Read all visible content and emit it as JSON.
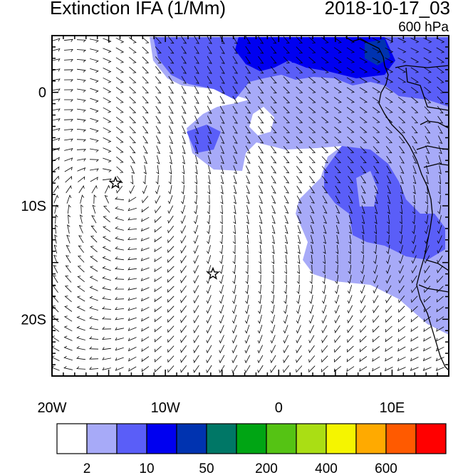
{
  "title_left": "Extinction IFA (1/Mm)",
  "title_right": "2018-10-17_03",
  "subtitle": "600 hPa",
  "map": {
    "lon_range": [
      -20,
      15
    ],
    "lat_range": [
      -25,
      5
    ],
    "lon_ticks": [
      {
        "lon": -20,
        "label": "20W"
      },
      {
        "lon": -10,
        "label": "10W"
      },
      {
        "lon": 0,
        "label": "0"
      },
      {
        "lon": 10,
        "label": "10E"
      }
    ],
    "lat_ticks": [
      {
        "lat": 0,
        "label": "0"
      },
      {
        "lat": -10,
        "label": "10S"
      },
      {
        "lat": -20,
        "label": "20S"
      }
    ],
    "markers": [
      {
        "name": "star-marker",
        "lon": -14.4,
        "lat": -8.0
      },
      {
        "name": "star-marker",
        "lon": -5.8,
        "lat": -16.0
      }
    ]
  },
  "colorbar": {
    "colors": [
      "#ffffff",
      "#a7aaf8",
      "#5a5ef8",
      "#0000f0",
      "#0033b0",
      "#007766",
      "#00a514",
      "#55c314",
      "#aade14",
      "#f5f500",
      "#ffaa00",
      "#ff5a00",
      "#ff0000"
    ],
    "labels": [
      {
        "after_box": 1,
        "text": "2"
      },
      {
        "after_box": 3,
        "text": "10"
      },
      {
        "after_box": 5,
        "text": "50"
      },
      {
        "after_box": 7,
        "text": "200"
      },
      {
        "after_box": 9,
        "text": "400"
      },
      {
        "after_box": 11,
        "text": "600"
      }
    ]
  }
}
